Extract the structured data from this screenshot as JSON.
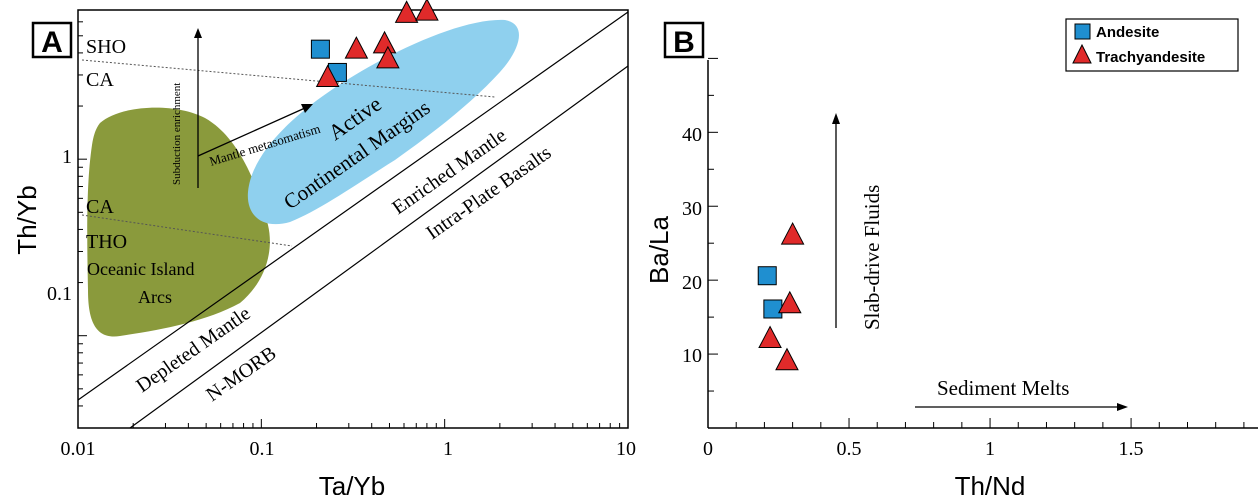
{
  "chart_data": [
    {
      "type": "scatter",
      "panel_label": "A",
      "xlabel": "Ta/Yb",
      "ylabel": "Th/Yb",
      "xscale": "log",
      "yscale": "log",
      "xlim": [
        0.01,
        10
      ],
      "ylim": [
        0.03,
        7
      ],
      "x_ticks": [
        "0.01",
        "0.1",
        "1",
        "10"
      ],
      "y_ticks": [
        "0.1",
        "1"
      ],
      "series": [
        {
          "name": "Andesite",
          "marker": "square",
          "color": "#1f8fd0",
          "points": [
            [
              0.21,
              4.2
            ],
            [
              0.26,
              3.1
            ]
          ]
        },
        {
          "name": "Trachyandesite",
          "marker": "triangle",
          "color": "#e02a2a",
          "points": [
            [
              0.23,
              2.9
            ],
            [
              0.33,
              4.2
            ],
            [
              0.47,
              4.5
            ],
            [
              0.49,
              3.7
            ],
            [
              0.62,
              6.7
            ],
            [
              0.8,
              6.9
            ]
          ]
        }
      ],
      "annotations": {
        "sho": "SHO",
        "ca_top": "CA",
        "ca_bottom": "CA",
        "tho": "THO",
        "oia_line1": "Oceanic Island",
        "oia_line2": "Arcs",
        "active_line1": "Active",
        "active_line2": "Continental Margins",
        "subduction": "Subduction enrichment",
        "mantle_meta": "Mantle metasomatism",
        "enriched": "Enriched Mantle",
        "intraplate": "Intra-Plate Basalts",
        "depleted": "Depleted Mantle",
        "nmorb": "N-MORB"
      },
      "colors": {
        "oia_field": "#8a9a3c",
        "acm_field": "#8fd0ee"
      }
    },
    {
      "type": "scatter",
      "panel_label": "B",
      "xlabel": "Th/Nd",
      "ylabel": "Ba/La",
      "xlim": [
        0,
        1.95
      ],
      "ylim": [
        0,
        51
      ],
      "x_ticks": [
        "0",
        "0.5",
        "1",
        "1.5"
      ],
      "y_ticks": [
        "10",
        "20",
        "30",
        "40"
      ],
      "series": [
        {
          "name": "Andesite",
          "marker": "square",
          "color": "#1f8fd0",
          "points": [
            [
              0.21,
              20.6
            ],
            [
              0.23,
              16.1
            ]
          ]
        },
        {
          "name": "Trachyandesite",
          "marker": "triangle",
          "color": "#e02a2a",
          "points": [
            [
              0.3,
              26.1
            ],
            [
              0.29,
              16.8
            ],
            [
              0.22,
              12.1
            ],
            [
              0.28,
              9.1
            ]
          ]
        }
      ],
      "legend": {
        "placement": "top-right",
        "items": [
          "Andesite",
          "Trachyandesite"
        ]
      },
      "annotations": {
        "slab": "Slab-drive Fluids",
        "sediment": "Sediment Melts"
      }
    }
  ]
}
